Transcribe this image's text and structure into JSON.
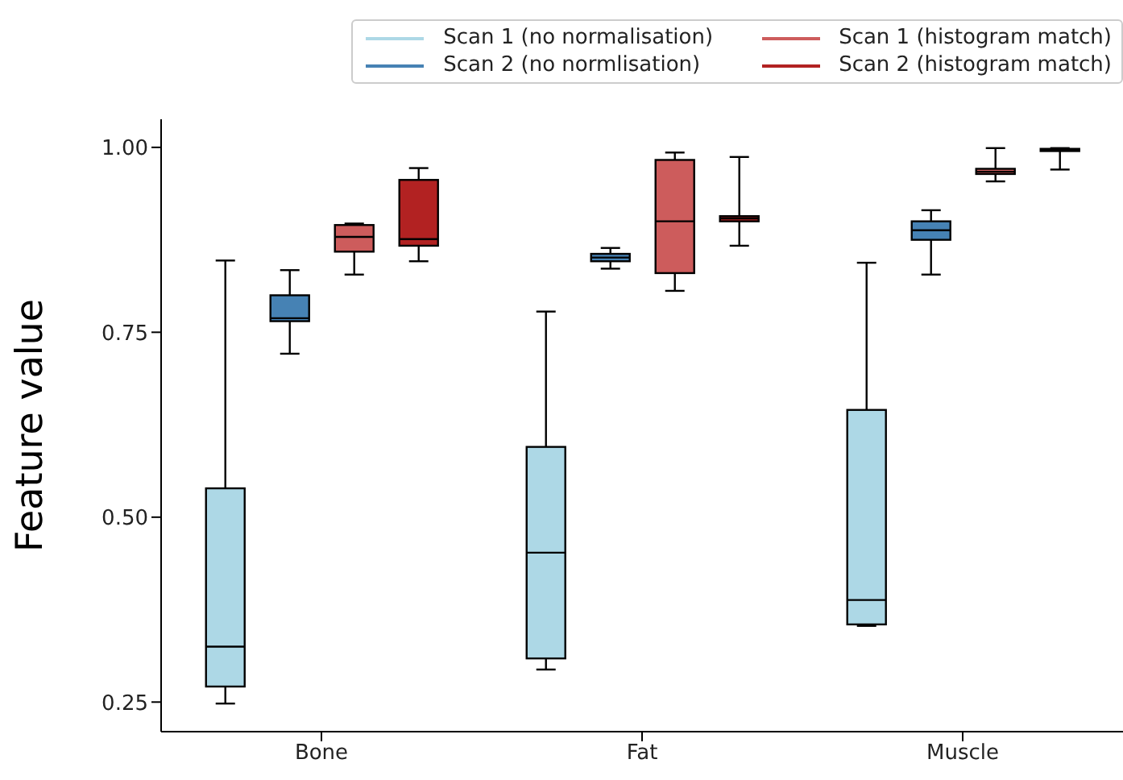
{
  "chart_data": {
    "type": "box",
    "ylabel": "Feature value",
    "categories": [
      "Bone",
      "Fat",
      "Muscle"
    ],
    "ylim": [
      0.21,
      1.038
    ],
    "yticks": [
      {
        "value": 0.25,
        "label": "0.25"
      },
      {
        "value": 0.5,
        "label": "0.50"
      },
      {
        "value": 0.75,
        "label": "0.75"
      },
      {
        "value": 1.0,
        "label": "1.00"
      }
    ],
    "legend": "top right",
    "grid": false,
    "series": [
      {
        "name": "Scan 1 (no normalisation)",
        "color": "#add8e6",
        "boxes": [
          {
            "low": 0.248,
            "q1": 0.271,
            "median": 0.325,
            "q3": 0.539,
            "high": 0.847
          },
          {
            "low": 0.294,
            "q1": 0.309,
            "median": 0.452,
            "q3": 0.595,
            "high": 0.778
          },
          {
            "low": 0.353,
            "q1": 0.355,
            "median": 0.388,
            "q3": 0.645,
            "high": 0.844
          }
        ]
      },
      {
        "name": "Scan 2 (no normlisation)",
        "color": "#4682b4",
        "boxes": [
          {
            "low": 0.721,
            "q1": 0.765,
            "median": 0.769,
            "q3": 0.8,
            "high": 0.834
          },
          {
            "low": 0.836,
            "q1": 0.846,
            "median": 0.851,
            "q3": 0.856,
            "high": 0.864
          },
          {
            "low": 0.828,
            "q1": 0.875,
            "median": 0.888,
            "q3": 0.9,
            "high": 0.915
          }
        ]
      },
      {
        "name": "Scan 1 (histogram match)",
        "color": "#cd5c5c",
        "boxes": [
          {
            "low": 0.828,
            "q1": 0.859,
            "median": 0.879,
            "q3": 0.895,
            "high": 0.897
          },
          {
            "low": 0.806,
            "q1": 0.83,
            "median": 0.9,
            "q3": 0.983,
            "high": 0.993
          },
          {
            "low": 0.954,
            "q1": 0.964,
            "median": 0.967,
            "q3": 0.971,
            "high": 0.999
          }
        ]
      },
      {
        "name": "Scan 2 (histogram match)",
        "color": "#b22222",
        "boxes": [
          {
            "low": 0.846,
            "q1": 0.867,
            "median": 0.876,
            "q3": 0.956,
            "high": 0.972
          },
          {
            "low": 0.867,
            "q1": 0.9,
            "median": 0.904,
            "q3": 0.907,
            "high": 0.987
          },
          {
            "low": 0.97,
            "q1": 0.995,
            "median": 0.996,
            "q3": 0.998,
            "high": 0.999
          }
        ]
      }
    ]
  }
}
